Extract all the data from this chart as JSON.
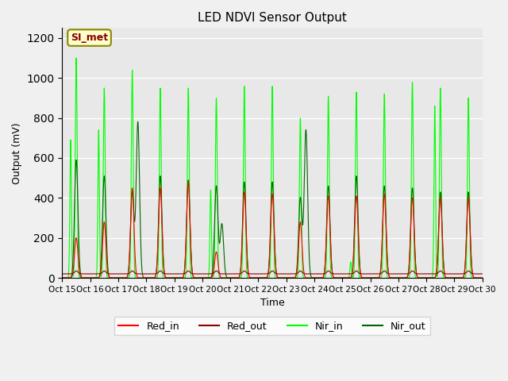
{
  "title": "LED NDVI Sensor Output",
  "xlabel": "Time",
  "ylabel": "Output (mV)",
  "ylim": [
    0,
    1250
  ],
  "xtick_labels": [
    "Oct 15",
    "Oct 16",
    "Oct 17",
    "Oct 18",
    "Oct 19",
    "Oct 20",
    "Oct 21",
    "Oct 22",
    "Oct 23",
    "Oct 24",
    "Oct 25",
    "Oct 26",
    "Oct 27",
    "Oct 28",
    "Oct 29",
    "Oct 30"
  ],
  "plot_bg_color": "#e8e8e8",
  "fig_bg_color": "#f0f0f0",
  "annotation_text": "SI_met",
  "annotation_bg": "#ffffcc",
  "annotation_border": "#888800",
  "colors": {
    "Red_in": "#ff0000",
    "Red_out": "#8b0000",
    "Nir_in": "#00ff00",
    "Nir_out": "#006400"
  },
  "nir_in_peaks": [
    1100,
    950,
    1040,
    950,
    950,
    900,
    960,
    960,
    800,
    910,
    930,
    920,
    980,
    950,
    900
  ],
  "nir_out_peaks": [
    590,
    510,
    430,
    510,
    490,
    460,
    480,
    480,
    400,
    460,
    510,
    460,
    450,
    430,
    430
  ],
  "red_in_peaks": [
    200,
    280,
    450,
    450,
    480,
    130,
    430,
    420,
    280,
    410,
    410,
    420,
    400,
    400,
    400
  ],
  "nir_in_secondary": [
    690,
    740,
    0,
    0,
    0,
    440,
    0,
    0,
    0,
    0,
    80,
    0,
    0,
    860,
    0
  ],
  "nir_out_secondary": [
    0,
    0,
    780,
    0,
    0,
    270,
    0,
    0,
    740,
    0,
    0,
    0,
    0,
    0,
    0
  ]
}
